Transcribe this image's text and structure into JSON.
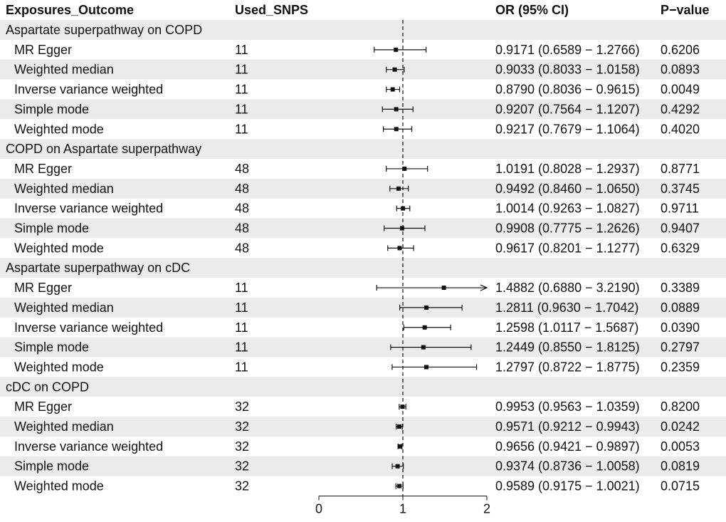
{
  "headers": {
    "exposures": "Exposures_Outcome",
    "snps": "Used_SNPS",
    "or": "OR (95% CI)",
    "pvalue": "P−value"
  },
  "colors": {
    "band": "#ebebeb",
    "ink": "#111111"
  },
  "chart_data": {
    "type": "forest",
    "xlim": [
      0,
      2
    ],
    "x_ticks": [
      0,
      1,
      2
    ],
    "reference_line": 1,
    "groups": [
      {
        "label": "Aspartate superpathway on COPD",
        "rows": [
          {
            "method": "MR Egger",
            "snps": "11",
            "or": 0.9171,
            "lo": 0.6589,
            "hi": 1.2766,
            "or_text": "0.9171 (0.6589 − 1.2766)",
            "p": "0.6206"
          },
          {
            "method": "Weighted median",
            "snps": "11",
            "or": 0.9033,
            "lo": 0.8033,
            "hi": 1.0158,
            "or_text": "0.9033 (0.8033 − 1.0158)",
            "p": "0.0893"
          },
          {
            "method": "Inverse variance weighted",
            "snps": "11",
            "or": 0.879,
            "lo": 0.8036,
            "hi": 0.9615,
            "or_text": "0.8790 (0.8036 − 0.9615)",
            "p": "0.0049"
          },
          {
            "method": "Simple mode",
            "snps": "11",
            "or": 0.9207,
            "lo": 0.7564,
            "hi": 1.1207,
            "or_text": "0.9207 (0.7564 − 1.1207)",
            "p": "0.4292"
          },
          {
            "method": "Weighted mode",
            "snps": "11",
            "or": 0.9217,
            "lo": 0.7679,
            "hi": 1.1064,
            "or_text": "0.9217 (0.7679 − 1.1064)",
            "p": "0.4020"
          }
        ]
      },
      {
        "label": "COPD on Aspartate superpathway",
        "rows": [
          {
            "method": "MR Egger",
            "snps": "48",
            "or": 1.0191,
            "lo": 0.8028,
            "hi": 1.2937,
            "or_text": "1.0191 (0.8028 − 1.2937)",
            "p": "0.8771"
          },
          {
            "method": "Weighted median",
            "snps": "48",
            "or": 0.9492,
            "lo": 0.846,
            "hi": 1.065,
            "or_text": "0.9492 (0.8460 − 1.0650)",
            "p": "0.3745"
          },
          {
            "method": "Inverse variance weighted",
            "snps": "48",
            "or": 1.0014,
            "lo": 0.9263,
            "hi": 1.0827,
            "or_text": "1.0014 (0.9263 − 1.0827)",
            "p": "0.9711"
          },
          {
            "method": "Simple mode",
            "snps": "48",
            "or": 0.9908,
            "lo": 0.7775,
            "hi": 1.2626,
            "or_text": "0.9908 (0.7775 − 1.2626)",
            "p": "0.9407"
          },
          {
            "method": "Weighted mode",
            "snps": "48",
            "or": 0.9617,
            "lo": 0.8201,
            "hi": 1.1277,
            "or_text": "0.9617 (0.8201 − 1.1277)",
            "p": "0.6329"
          }
        ]
      },
      {
        "label": "Aspartate superpathway on cDC",
        "rows": [
          {
            "method": "MR Egger",
            "snps": "11",
            "or": 1.4882,
            "lo": 0.688,
            "hi": 3.219,
            "or_text": "1.4882 (0.6880 − 3.2190)",
            "p": "0.3389",
            "clipped_hi": true
          },
          {
            "method": "Weighted median",
            "snps": "11",
            "or": 1.2811,
            "lo": 0.963,
            "hi": 1.7042,
            "or_text": "1.2811 (0.9630 − 1.7042)",
            "p": "0.0889"
          },
          {
            "method": "Inverse variance weighted",
            "snps": "11",
            "or": 1.2598,
            "lo": 1.0117,
            "hi": 1.5687,
            "or_text": "1.2598 (1.0117 − 1.5687)",
            "p": "0.0390"
          },
          {
            "method": "Simple mode",
            "snps": "11",
            "or": 1.2449,
            "lo": 0.855,
            "hi": 1.8125,
            "or_text": "1.2449 (0.8550 − 1.8125)",
            "p": "0.2797"
          },
          {
            "method": "Weighted mode",
            "snps": "11",
            "or": 1.2797,
            "lo": 0.8722,
            "hi": 1.8775,
            "or_text": "1.2797 (0.8722 − 1.8775)",
            "p": "0.2359"
          }
        ]
      },
      {
        "label": "cDC on COPD",
        "rows": [
          {
            "method": "MR Egger",
            "snps": "32",
            "or": 0.9953,
            "lo": 0.9563,
            "hi": 1.0359,
            "or_text": "0.9953 (0.9563 − 1.0359)",
            "p": "0.8200"
          },
          {
            "method": "Weighted median",
            "snps": "32",
            "or": 0.9571,
            "lo": 0.9212,
            "hi": 0.9943,
            "or_text": "0.9571 (0.9212 − 0.9943)",
            "p": "0.0242"
          },
          {
            "method": "Inverse variance weighted",
            "snps": "32",
            "or": 0.9656,
            "lo": 0.9421,
            "hi": 0.9897,
            "or_text": "0.9656 (0.9421 − 0.9897)",
            "p": "0.0053"
          },
          {
            "method": "Simple mode",
            "snps": "32",
            "or": 0.9374,
            "lo": 0.8736,
            "hi": 1.0058,
            "or_text": "0.9374 (0.8736 − 1.0058)",
            "p": "0.0819"
          },
          {
            "method": "Weighted mode",
            "snps": "32",
            "or": 0.9589,
            "lo": 0.9175,
            "hi": 1.0021,
            "or_text": "0.9589 (0.9175 − 1.0021)",
            "p": "0.0715"
          }
        ]
      }
    ]
  }
}
